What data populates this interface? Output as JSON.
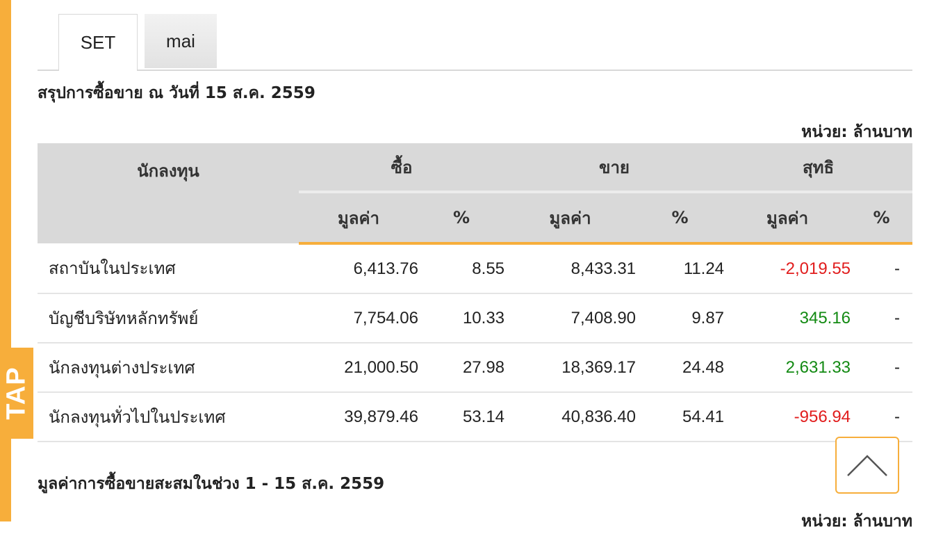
{
  "tabs": [
    "SET",
    "mai"
  ],
  "summary_title": "สรุปการซื้อขาย ณ วันที่ 15 ส.ค. 2559",
  "unit_label": "หน่วย: ล้านบาท",
  "table": {
    "header_investor": "นักลงทุน",
    "header_buy": "ซื้อ",
    "header_sell": "ขาย",
    "header_net": "สุทธิ",
    "sub_value": "มูลค่า",
    "sub_percent": "%",
    "rows": [
      {
        "name": "สถาบันในประเทศ",
        "buy_value": "6,413.76",
        "buy_pct": "8.55",
        "sell_value": "8,433.31",
        "sell_pct": "11.24",
        "net_value": "-2,019.55",
        "net_pct": "-"
      },
      {
        "name": "บัญชีบริษัทหลักทรัพย์",
        "buy_value": "7,754.06",
        "buy_pct": "10.33",
        "sell_value": "7,408.90",
        "sell_pct": "9.87",
        "net_value": "345.16",
        "net_pct": "-"
      },
      {
        "name": "นักลงทุนต่างประเทศ",
        "buy_value": "21,000.50",
        "buy_pct": "27.98",
        "sell_value": "18,369.17",
        "sell_pct": "24.48",
        "net_value": "2,631.33",
        "net_pct": "-"
      },
      {
        "name": "นักลงทุนทั่วไปในประเทศ",
        "buy_value": "39,879.46",
        "buy_pct": "53.14",
        "sell_value": "40,836.40",
        "sell_pct": "54.41",
        "net_value": "-956.94",
        "net_pct": "-"
      }
    ]
  },
  "cumulative_title": "มูลค่าการซื้อขายสะสมในช่วง 1 - 15 ส.ค. 2559",
  "side_tab_label": "TAP",
  "colors": {
    "accent": "#f7ae3b",
    "negative": "#e11d1d",
    "positive": "#138a13",
    "header_bg": "#d9d9d9"
  },
  "icons": {
    "scroll_top": "chevron-up-icon"
  }
}
